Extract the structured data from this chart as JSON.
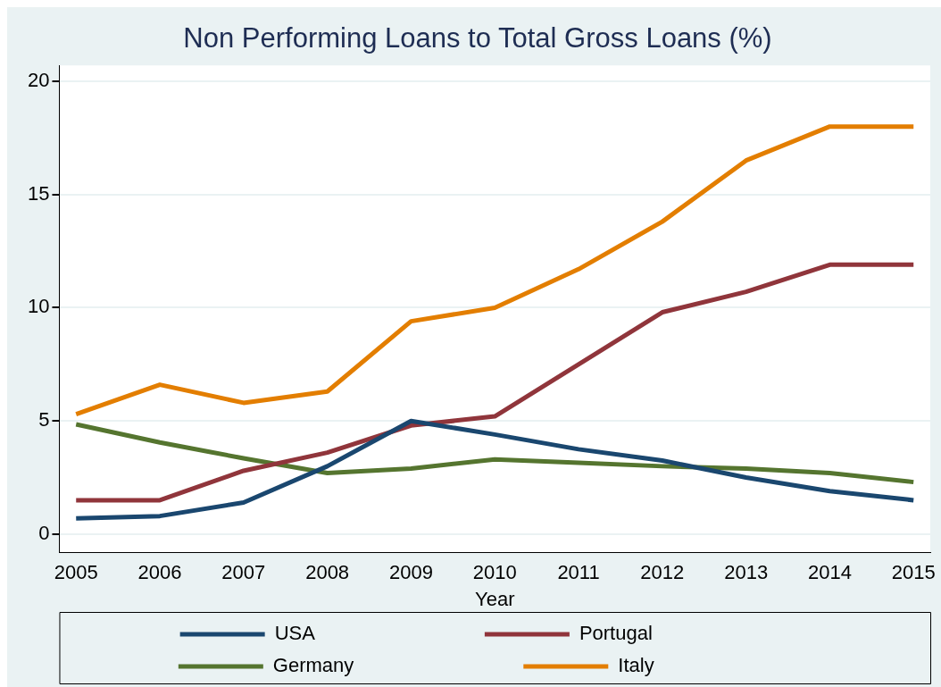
{
  "chart_data": {
    "type": "line",
    "title": "Non Performing Loans to Total Gross Loans (%)",
    "xlabel": "Year",
    "x": [
      2005,
      2006,
      2007,
      2008,
      2009,
      2010,
      2011,
      2012,
      2013,
      2014,
      2015
    ],
    "series": [
      {
        "name": "USA",
        "color": "#1a476f",
        "values": [
          0.7,
          0.8,
          1.4,
          3.0,
          5.0,
          4.4,
          3.75,
          3.25,
          2.5,
          1.9,
          1.5
        ]
      },
      {
        "name": "Portugal",
        "color": "#90353b",
        "values": [
          1.5,
          1.5,
          2.8,
          3.6,
          4.8,
          5.2,
          7.5,
          9.8,
          10.7,
          11.9,
          11.9
        ]
      },
      {
        "name": "Germany",
        "color": "#55752f",
        "values": [
          4.85,
          4.05,
          3.35,
          2.7,
          2.9,
          3.3,
          3.15,
          3.0,
          2.9,
          2.7,
          2.3
        ]
      },
      {
        "name": "Italy",
        "color": "#e37e00",
        "values": [
          5.3,
          6.6,
          5.8,
          6.3,
          9.4,
          10.0,
          11.7,
          13.8,
          16.5,
          18.0,
          18.0
        ]
      }
    ],
    "xlim": [
      2004.8,
      2015.2
    ],
    "xticks": [
      2005,
      2006,
      2007,
      2008,
      2009,
      2010,
      2011,
      2012,
      2013,
      2014,
      2015
    ],
    "ylim": [
      -0.8,
      20.7
    ],
    "yticks": [
      0,
      5,
      10,
      15,
      20
    ],
    "grid": "y",
    "legend": "bottom",
    "marker": "none",
    "line_style": "solid"
  }
}
